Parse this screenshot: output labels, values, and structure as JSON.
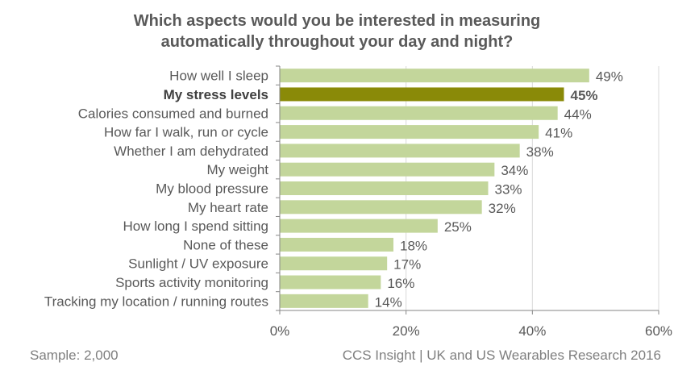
{
  "chart_data": {
    "type": "bar",
    "orientation": "horizontal",
    "title": "Which aspects would you be interested in measuring automatically throughout your day and night?",
    "title_lines": [
      "Which aspects would you be interested in measuring",
      "automatically throughout your day and night?"
    ],
    "categories": [
      "How well I sleep",
      "My stress levels",
      "Calories consumed and burned",
      "How far I walk, run or cycle",
      "Whether I am dehydrated",
      "My weight",
      "My blood pressure",
      "My heart rate",
      "How long I spend sitting",
      "None of these",
      "Sunlight / UV exposure",
      "Sports activity monitoring",
      "Tracking my location / running routes"
    ],
    "values": [
      49,
      45,
      44,
      41,
      38,
      34,
      33,
      32,
      25,
      18,
      17,
      16,
      14
    ],
    "data_labels": [
      "49%",
      "45%",
      "44%",
      "41%",
      "38%",
      "34%",
      "33%",
      "32%",
      "25%",
      "18%",
      "17%",
      "16%",
      "14%"
    ],
    "highlighted_index": 1,
    "xlim": [
      0,
      60
    ],
    "x_ticks": [
      0,
      20,
      40,
      60
    ],
    "x_tick_labels": [
      "0%",
      "20%",
      "40%",
      "60%"
    ],
    "xlabel": "",
    "ylabel": "",
    "grid": "vertical",
    "legend": "none",
    "colors": {
      "bar": "#c3d69b",
      "highlight": "#8a8a08",
      "grid": "#d9d9d9",
      "text": "#595959"
    }
  },
  "footer": {
    "sample": "Sample: 2,000",
    "source": "CCS Insight | UK and US Wearables Research 2016"
  }
}
